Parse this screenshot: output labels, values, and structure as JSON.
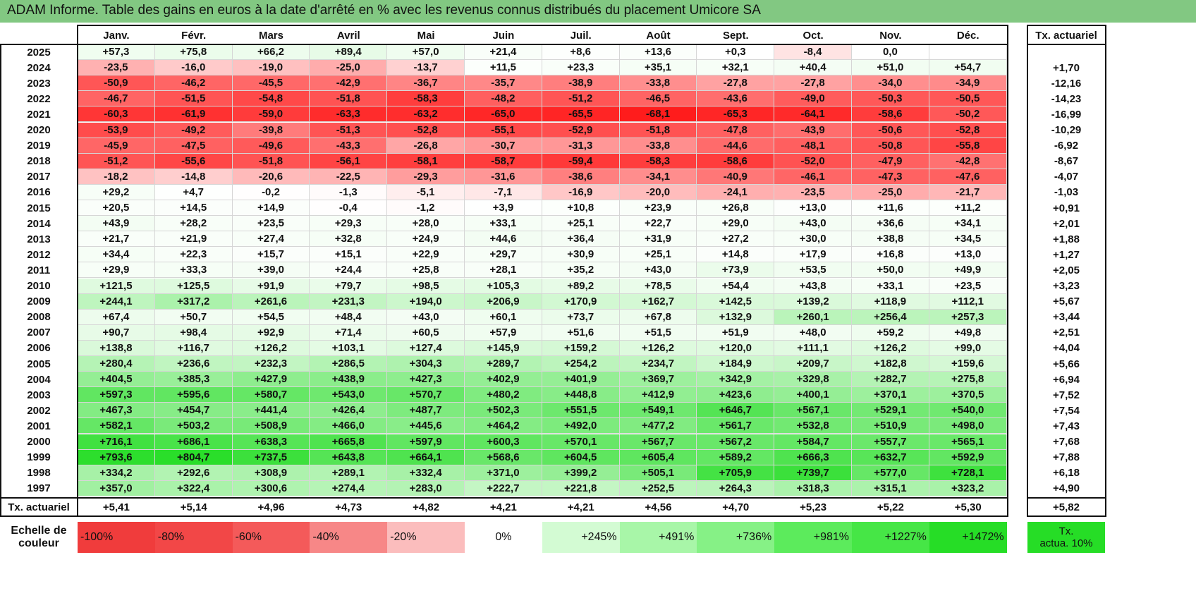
{
  "title": "ADAM Informe. Table des gains en euros à la date d'arrêté en % avec les revenus connus distribués du placement Umicore SA",
  "months": [
    "Janv.",
    "Févr.",
    "Mars",
    "Avril",
    "Mai",
    "Juin",
    "Juil.",
    "Août",
    "Sept.",
    "Oct.",
    "Nov.",
    "Déc."
  ],
  "rate_header": "Tx. actuariel",
  "rows": [
    {
      "year": "2025",
      "values": [
        "+57,3",
        "+75,8",
        "+66,2",
        "+89,4",
        "+57,0",
        "+21,4",
        "+8,6",
        "+13,6",
        "+0,3",
        "-8,4",
        "0,0",
        ""
      ],
      "rate": ""
    },
    {
      "year": "2024",
      "values": [
        "-23,5",
        "-16,0",
        "-19,0",
        "-25,0",
        "-13,7",
        "+11,5",
        "+23,3",
        "+35,1",
        "+32,1",
        "+40,4",
        "+51,0",
        "+54,7"
      ],
      "rate": "+1,70"
    },
    {
      "year": "2023",
      "values": [
        "-50,9",
        "-46,2",
        "-45,5",
        "-42,9",
        "-36,7",
        "-35,7",
        "-38,9",
        "-33,8",
        "-27,8",
        "-27,8",
        "-34,0",
        "-34,9"
      ],
      "rate": "-12,16"
    },
    {
      "year": "2022",
      "values": [
        "-46,7",
        "-51,5",
        "-54,8",
        "-51,8",
        "-58,3",
        "-48,2",
        "-51,2",
        "-46,5",
        "-43,6",
        "-49,0",
        "-50,3",
        "-50,5"
      ],
      "rate": "-14,23"
    },
    {
      "year": "2021",
      "values": [
        "-60,3",
        "-61,9",
        "-59,0",
        "-63,3",
        "-63,2",
        "-65,0",
        "-65,5",
        "-68,1",
        "-65,3",
        "-64,1",
        "-58,6",
        "-50,2"
      ],
      "rate": "-16,99"
    },
    {
      "year": "2020",
      "values": [
        "-53,9",
        "-49,2",
        "-39,8",
        "-51,3",
        "-52,8",
        "-55,1",
        "-52,9",
        "-51,8",
        "-47,8",
        "-43,9",
        "-50,6",
        "-52,8"
      ],
      "rate": "-10,29"
    },
    {
      "year": "2019",
      "values": [
        "-45,9",
        "-47,5",
        "-49,6",
        "-43,3",
        "-26,8",
        "-30,7",
        "-31,3",
        "-33,8",
        "-44,6",
        "-48,1",
        "-50,8",
        "-55,8"
      ],
      "rate": "-6,92"
    },
    {
      "year": "2018",
      "values": [
        "-51,2",
        "-55,6",
        "-51,8",
        "-56,1",
        "-58,1",
        "-58,7",
        "-59,4",
        "-58,3",
        "-58,6",
        "-52,0",
        "-47,9",
        "-42,8"
      ],
      "rate": "-8,67"
    },
    {
      "year": "2017",
      "values": [
        "-18,2",
        "-14,8",
        "-20,6",
        "-22,5",
        "-29,3",
        "-31,6",
        "-38,6",
        "-34,1",
        "-40,9",
        "-46,1",
        "-47,3",
        "-47,6"
      ],
      "rate": "-4,07"
    },
    {
      "year": "2016",
      "values": [
        "+29,2",
        "+4,7",
        "-0,2",
        "-1,3",
        "-5,1",
        "-7,1",
        "-16,9",
        "-20,0",
        "-24,1",
        "-23,5",
        "-25,0",
        "-21,7"
      ],
      "rate": "-1,03"
    },
    {
      "year": "2015",
      "values": [
        "+20,5",
        "+14,5",
        "+14,9",
        "-0,4",
        "-1,2",
        "+3,9",
        "+10,8",
        "+23,9",
        "+26,8",
        "+13,0",
        "+11,6",
        "+11,2"
      ],
      "rate": "+0,91"
    },
    {
      "year": "2014",
      "values": [
        "+43,9",
        "+28,2",
        "+23,5",
        "+29,3",
        "+28,0",
        "+33,1",
        "+25,1",
        "+22,7",
        "+29,0",
        "+43,0",
        "+36,6",
        "+34,1"
      ],
      "rate": "+2,01"
    },
    {
      "year": "2013",
      "values": [
        "+21,7",
        "+21,9",
        "+27,4",
        "+32,8",
        "+24,9",
        "+44,6",
        "+36,4",
        "+31,9",
        "+27,2",
        "+30,0",
        "+38,8",
        "+34,5"
      ],
      "rate": "+1,88"
    },
    {
      "year": "2012",
      "values": [
        "+34,4",
        "+22,3",
        "+15,7",
        "+15,1",
        "+22,9",
        "+29,7",
        "+30,9",
        "+25,1",
        "+14,8",
        "+17,9",
        "+16,8",
        "+13,0"
      ],
      "rate": "+1,27"
    },
    {
      "year": "2011",
      "values": [
        "+29,9",
        "+33,3",
        "+39,0",
        "+24,4",
        "+25,8",
        "+28,1",
        "+35,2",
        "+43,0",
        "+73,9",
        "+53,5",
        "+50,0",
        "+49,9"
      ],
      "rate": "+2,05"
    },
    {
      "year": "2010",
      "values": [
        "+121,5",
        "+125,5",
        "+91,9",
        "+79,7",
        "+98,5",
        "+105,3",
        "+89,2",
        "+78,5",
        "+54,4",
        "+43,8",
        "+33,1",
        "+23,5"
      ],
      "rate": "+3,23"
    },
    {
      "year": "2009",
      "values": [
        "+244,1",
        "+317,2",
        "+261,6",
        "+231,3",
        "+194,0",
        "+206,9",
        "+170,9",
        "+162,7",
        "+142,5",
        "+139,2",
        "+118,9",
        "+112,1"
      ],
      "rate": "+5,67"
    },
    {
      "year": "2008",
      "values": [
        "+67,4",
        "+50,7",
        "+54,5",
        "+48,4",
        "+43,0",
        "+60,1",
        "+73,7",
        "+67,8",
        "+132,9",
        "+260,1",
        "+256,4",
        "+257,3"
      ],
      "rate": "+3,44"
    },
    {
      "year": "2007",
      "values": [
        "+90,7",
        "+98,4",
        "+92,9",
        "+71,4",
        "+60,5",
        "+57,9",
        "+51,6",
        "+51,5",
        "+51,9",
        "+48,0",
        "+59,2",
        "+49,8"
      ],
      "rate": "+2,51"
    },
    {
      "year": "2006",
      "values": [
        "+138,8",
        "+116,7",
        "+126,2",
        "+103,1",
        "+127,4",
        "+145,9",
        "+159,2",
        "+126,2",
        "+120,0",
        "+111,1",
        "+126,2",
        "+99,0"
      ],
      "rate": "+4,04"
    },
    {
      "year": "2005",
      "values": [
        "+280,4",
        "+236,6",
        "+232,3",
        "+286,5",
        "+304,3",
        "+289,7",
        "+254,2",
        "+234,7",
        "+184,9",
        "+209,7",
        "+182,8",
        "+159,6"
      ],
      "rate": "+5,66"
    },
    {
      "year": "2004",
      "values": [
        "+404,5",
        "+385,3",
        "+427,9",
        "+438,9",
        "+427,3",
        "+402,9",
        "+401,9",
        "+369,7",
        "+342,9",
        "+329,8",
        "+282,7",
        "+275,8"
      ],
      "rate": "+6,94"
    },
    {
      "year": "2003",
      "values": [
        "+597,3",
        "+595,6",
        "+580,7",
        "+543,0",
        "+570,7",
        "+480,2",
        "+448,8",
        "+412,9",
        "+423,6",
        "+400,1",
        "+370,1",
        "+370,5"
      ],
      "rate": "+7,52"
    },
    {
      "year": "2002",
      "values": [
        "+467,3",
        "+454,7",
        "+441,4",
        "+426,4",
        "+487,7",
        "+502,3",
        "+551,5",
        "+549,1",
        "+646,7",
        "+567,1",
        "+529,1",
        "+540,0"
      ],
      "rate": "+7,54"
    },
    {
      "year": "2001",
      "values": [
        "+582,1",
        "+503,2",
        "+508,9",
        "+466,0",
        "+445,6",
        "+464,2",
        "+492,0",
        "+477,2",
        "+561,7",
        "+532,8",
        "+510,9",
        "+498,0"
      ],
      "rate": "+7,43"
    },
    {
      "year": "2000",
      "values": [
        "+716,1",
        "+686,1",
        "+638,3",
        "+665,8",
        "+597,9",
        "+600,3",
        "+570,1",
        "+567,7",
        "+567,2",
        "+584,7",
        "+557,7",
        "+565,1"
      ],
      "rate": "+7,68"
    },
    {
      "year": "1999",
      "values": [
        "+793,6",
        "+804,7",
        "+737,5",
        "+643,8",
        "+664,1",
        "+568,6",
        "+604,5",
        "+605,4",
        "+589,2",
        "+666,3",
        "+632,7",
        "+592,9"
      ],
      "rate": "+7,88"
    },
    {
      "year": "1998",
      "values": [
        "+334,2",
        "+292,6",
        "+308,9",
        "+289,1",
        "+332,4",
        "+371,0",
        "+399,2",
        "+505,1",
        "+705,9",
        "+739,7",
        "+577,0",
        "+728,1"
      ],
      "rate": "+6,18"
    },
    {
      "year": "1997",
      "values": [
        "+357,0",
        "+322,4",
        "+300,6",
        "+274,4",
        "+283,0",
        "+222,7",
        "+221,8",
        "+252,5",
        "+264,3",
        "+318,3",
        "+315,1",
        "+323,2"
      ],
      "rate": "+4,90"
    }
  ],
  "footer": {
    "label": "Tx. actuariel",
    "values": [
      "+5,41",
      "+5,14",
      "+4,96",
      "+4,73",
      "+4,82",
      "+4,21",
      "+4,21",
      "+4,56",
      "+4,70",
      "+5,23",
      "+5,22",
      "+5,30"
    ],
    "total": "+5,82"
  },
  "scale": {
    "label_line1": "Echelle de",
    "label_line2": "couleur",
    "items": [
      {
        "text": "-100%",
        "color": "#f03c3c"
      },
      {
        "text": "-80%",
        "color": "#f24747"
      },
      {
        "text": "-60%",
        "color": "#f45a5a"
      },
      {
        "text": "-40%",
        "color": "#f78787"
      },
      {
        "text": "-20%",
        "color": "#fbbdbd"
      },
      {
        "text": "0%",
        "color": "#ffffff"
      },
      {
        "text": "+245%",
        "color": "#d3fbd3"
      },
      {
        "text": "+491%",
        "color": "#a8f6a8"
      },
      {
        "text": "+736%",
        "color": "#86f186"
      },
      {
        "text": "+981%",
        "color": "#5ceb5c"
      },
      {
        "text": "+1227%",
        "color": "#46e646"
      },
      {
        "text": "+1472%",
        "color": "#26dd26"
      }
    ],
    "badge_line1": "Tx.",
    "badge_line2": "actua. 10%",
    "badge_color": "#26dd26"
  },
  "colors": {
    "title_bg": "#82c882",
    "negative_max": "#ff1a1a",
    "positive_max": "#26dd26"
  }
}
